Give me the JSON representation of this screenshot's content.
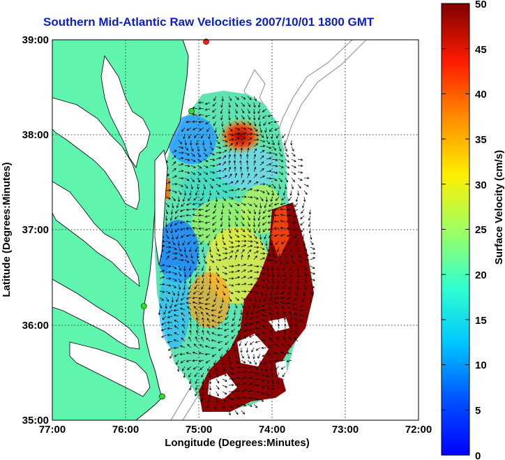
{
  "title": "Southern Mid-Atlantic Raw Velocities 2007/10/01 1800 GMT",
  "axes": {
    "xlabel": "Longitude (Degrees:Minutes)",
    "ylabel": "Latitude (Degrees:Minutes)",
    "x_ticks": [
      "77:00",
      "76:00",
      "75:00",
      "74:00",
      "73:00",
      "72:00"
    ],
    "y_ticks": [
      "39:00",
      "38:00",
      "37:00",
      "36:00",
      "35:00"
    ],
    "xlim": [
      -77,
      -72
    ],
    "ylim": [
      35,
      39
    ]
  },
  "colorbar": {
    "label": "Surface Velocity (cm/s)",
    "ticks": [
      "50",
      "45",
      "40",
      "35",
      "30",
      "25",
      "20",
      "15",
      "10",
      "5",
      "0"
    ],
    "range": [
      0,
      50
    ],
    "colormap": "jet"
  },
  "colors": {
    "land": "#5ff5ae",
    "coast": "#000000",
    "bathymetry": "#9a9a9a",
    "title": "#0a1bd6",
    "station_green": "#27e21f",
    "station_red": "#e8281c"
  },
  "stations": [
    {
      "lon": -74.9,
      "lat": 38.98,
      "state": "red"
    },
    {
      "lon": -75.1,
      "lat": 38.25,
      "state": "green"
    },
    {
      "lon": -75.75,
      "lat": 36.2,
      "state": "green"
    },
    {
      "lon": -75.5,
      "lat": 35.25,
      "state": "green"
    }
  ]
}
